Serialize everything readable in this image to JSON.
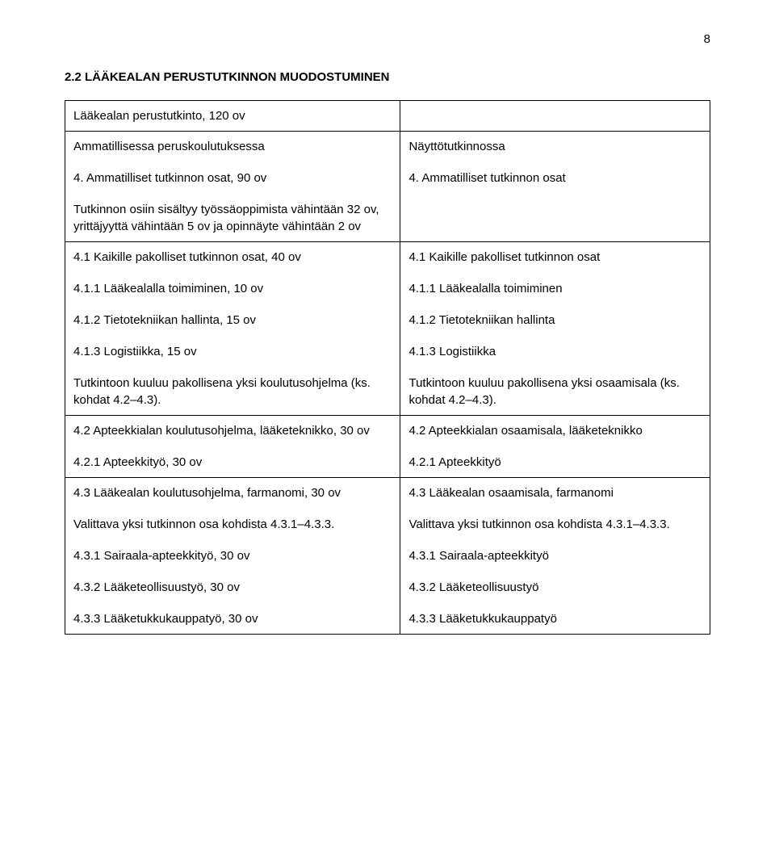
{
  "page_number": "8",
  "heading": "2.2 LÄÄKEALAN PERUSTUTKINNON MUODOSTUMINEN",
  "col_widths": {
    "left_pct": 52,
    "right_pct": 48
  },
  "colors": {
    "text": "#000000",
    "background": "#ffffff",
    "border": "#000000"
  },
  "typography": {
    "font_family": "Arial",
    "body_fontsize_pt": 11,
    "heading_fontsize_pt": 11,
    "heading_fontweight": "bold",
    "line_height": 1.4
  },
  "table": {
    "rows": [
      {
        "left": [
          "Lääkealan perustutkinto, 120 ov"
        ],
        "right": [
          ""
        ]
      },
      {
        "left": [
          "Ammatillisessa peruskoulutuksessa",
          "4. Ammatilliset tutkinnon osat, 90 ov",
          "Tutkinnon osiin sisältyy työssäoppimista vähintään 32 ov, yrittäjyyttä vähintään 5 ov ja opinnäyte vähintään 2 ov"
        ],
        "right": [
          "Näyttötutkinnossa",
          "4. Ammatilliset tutkinnon osat"
        ]
      },
      {
        "left": [
          "4.1 Kaikille pakolliset tutkinnon osat, 40 ov",
          "4.1.1 Lääkealalla toimiminen, 10 ov",
          "4.1.2 Tietotekniikan hallinta, 15 ov",
          "4.1.3 Logistiikka, 15 ov",
          "Tutkintoon kuuluu pakollisena yksi koulutusohjelma (ks. kohdat 4.2–4.3)."
        ],
        "right": [
          "4.1 Kaikille pakolliset tutkinnon osat",
          "4.1.1 Lääkealalla toimiminen",
          "4.1.2 Tietotekniikan hallinta",
          "4.1.3 Logistiikka",
          "Tutkintoon kuuluu pakollisena yksi osaamisala (ks. kohdat 4.2–4.3)."
        ]
      },
      {
        "left": [
          "4.2 Apteekkialan koulutusohjelma, lääketeknikko, 30 ov",
          "4.2.1 Apteekkityö, 30 ov"
        ],
        "right": [
          "4.2 Apteekkialan osaamisala, lääketeknikko",
          "4.2.1 Apteekkityö"
        ]
      },
      {
        "left": [
          "4.3 Lääkealan koulutusohjelma, farmanomi, 30 ov",
          "Valittava yksi tutkinnon osa kohdista 4.3.1–4.3.3.",
          "4.3.1 Sairaala-apteekkityö, 30 ov",
          "4.3.2 Lääketeollisuustyö, 30 ov",
          "4.3.3 Lääketukkukauppatyö, 30 ov"
        ],
        "right": [
          "4.3 Lääkealan osaamisala, farmanomi",
          "Valittava yksi tutkinnon osa kohdista 4.3.1–4.3.3.",
          "4.3.1 Sairaala-apteekkityö",
          "4.3.2 Lääketeollisuustyö",
          "4.3.3 Lääketukkukauppatyö"
        ]
      }
    ]
  }
}
